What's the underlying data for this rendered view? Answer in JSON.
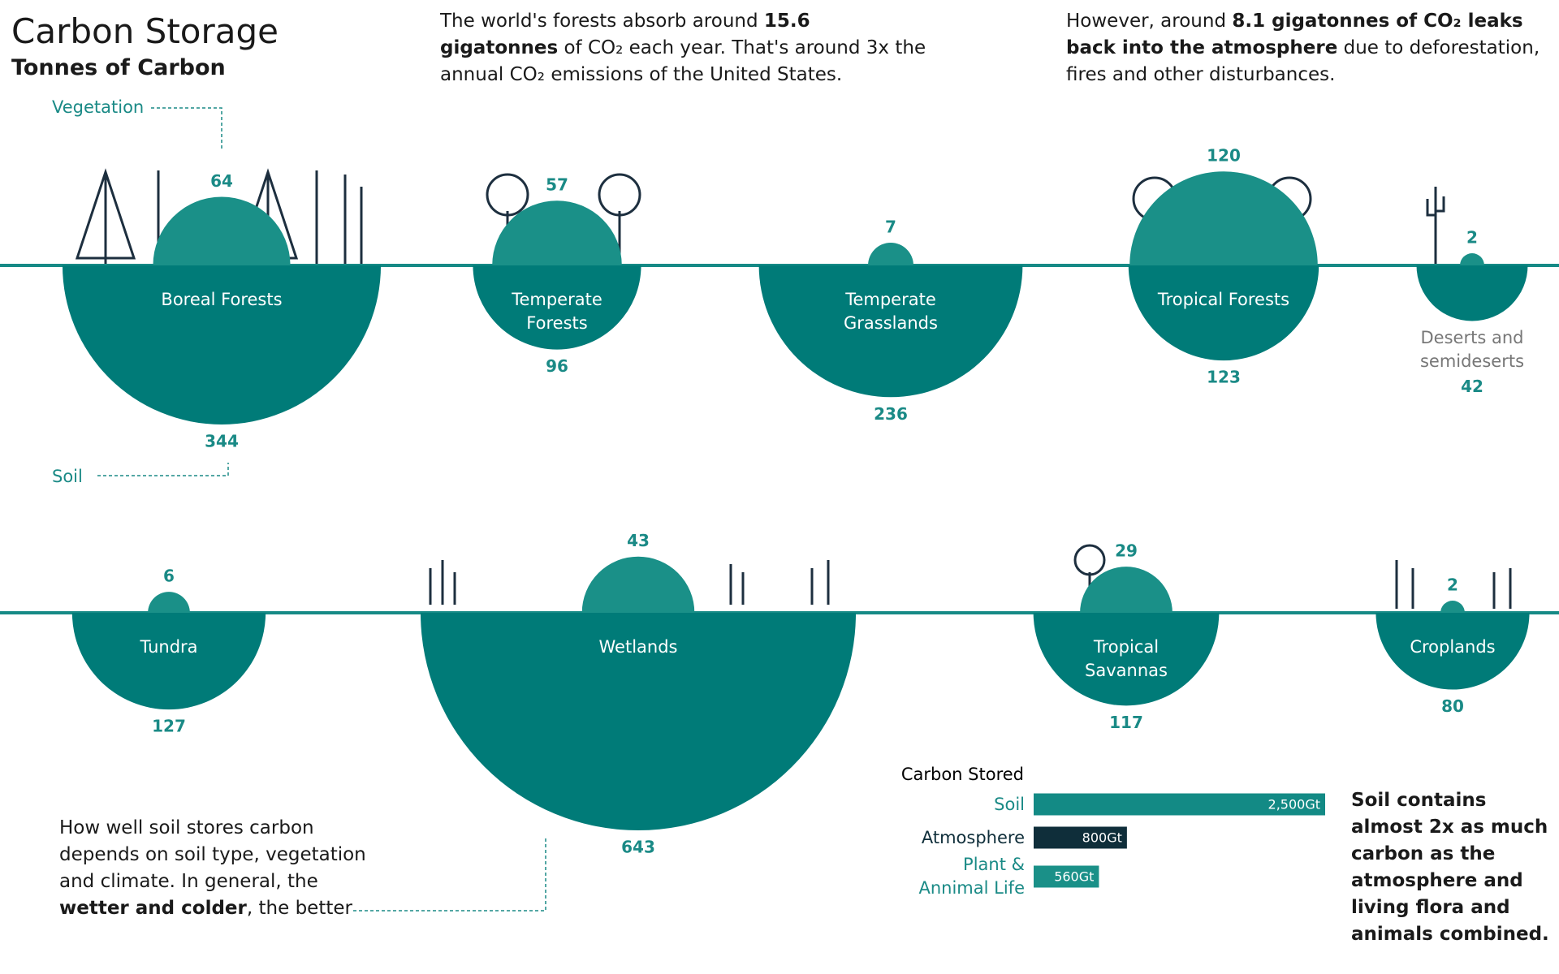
{
  "chart_data": [
    {
      "type": "semicircle",
      "title": "Carbon Storage",
      "subtitle": "Tonnes of Carbon",
      "categories": [
        "Boreal Forests",
        "Temperate Forests",
        "Temperate Grasslands",
        "Tropical Forests",
        "Deserts and semideserts",
        "Tundra",
        "Wetlands",
        "Tropical Savannas",
        "Croplands"
      ],
      "series": [
        {
          "name": "Vegetation",
          "color": "#1a9088",
          "values": [
            64,
            57,
            7,
            120,
            2,
            6,
            43,
            29,
            2
          ]
        },
        {
          "name": "Soil",
          "color": "#007b78",
          "values": [
            344,
            96,
            236,
            123,
            42,
            127,
            643,
            117,
            80
          ]
        }
      ]
    },
    {
      "type": "hbar",
      "title": "Carbon Stored",
      "categories": [
        "Soil",
        "Atmosphere",
        "Plant & Annimal Life"
      ],
      "values": [
        2500,
        800,
        560
      ],
      "value_labels": [
        "2,500Gt",
        "800Gt",
        "560Gt"
      ],
      "colors": [
        "#138a85",
        "#0f2e3a",
        "#1a9088"
      ]
    }
  ],
  "annotations": [
    [
      {
        "text": "The world's forests absorb around "
      },
      {
        "text": "15.6 gigatonnes",
        "bold": true
      },
      {
        "text": " of CO₂ each year. That's around 3x the annual CO₂ emissions of the United States."
      }
    ],
    [
      {
        "text": "However, around "
      },
      {
        "text": "8.1 gigatonnes of CO₂ leaks back into the atmosphere",
        "bold": true
      },
      {
        "text": " due to deforestation, fires and other disturbances."
      }
    ],
    [
      {
        "text": "How well soil stores carbon depends on soil type, vegetation and climate. In general, the "
      },
      {
        "text": "wetter and colder",
        "bold": true
      },
      {
        "text": ", the better"
      }
    ],
    [
      {
        "text": "Soil contains almost 2x as much carbon as the atmosphere and living flora and animals combined.",
        "bold": true
      }
    ]
  ]
}
